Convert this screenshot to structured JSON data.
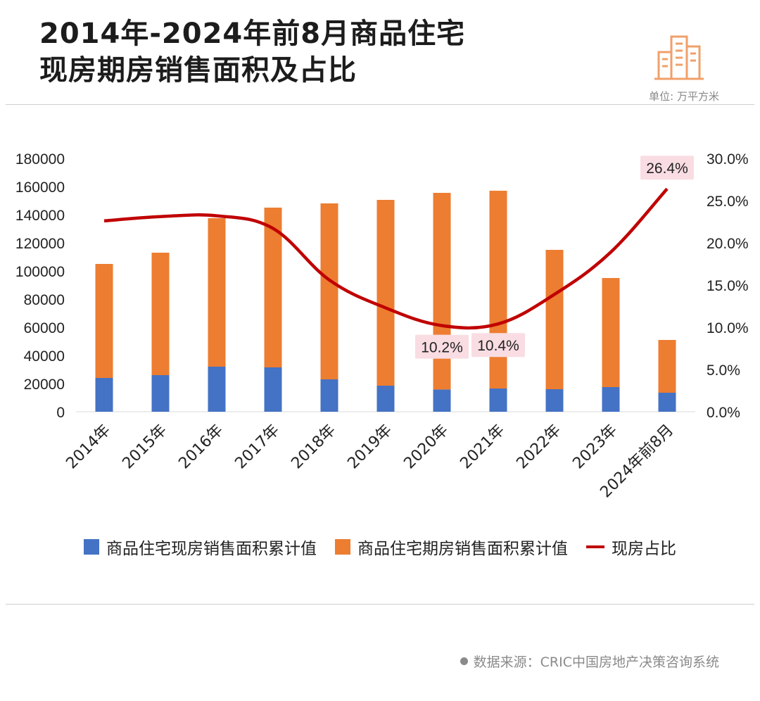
{
  "header": {
    "title_line1": "2014年-2024年前8月商品住宅",
    "title_line2": "现房期房销售面积及占比",
    "unit": "单位: 万平方米",
    "logo_icon": "buildings-icon"
  },
  "chart_data": {
    "type": "bar+line",
    "categories": [
      "2014年",
      "2015年",
      "2016年",
      "2017年",
      "2018年",
      "2019年",
      "2020年",
      "2021年",
      "2022年",
      "2023年",
      "2024年前8月"
    ],
    "series": [
      {
        "name": "商品住宅现房销售面积累计值",
        "type": "stacked-bar",
        "axis": "left",
        "color": "#4472C4",
        "values": [
          24000,
          26000,
          32000,
          31500,
          23000,
          18500,
          15800,
          16500,
          16000,
          17500,
          13500
        ]
      },
      {
        "name": "商品住宅期房销售面积累计值",
        "type": "stacked-bar",
        "axis": "left",
        "color": "#ED7D31",
        "values": [
          81000,
          87000,
          105500,
          113500,
          125000,
          132000,
          139700,
          140500,
          99000,
          77500,
          37500
        ]
      },
      {
        "name": "现房占比",
        "type": "line",
        "axis": "right",
        "color": "#C00000",
        "values": [
          22.6,
          23.1,
          23.2,
          21.7,
          15.6,
          12.3,
          10.2,
          10.4,
          13.9,
          18.9,
          26.4
        ]
      }
    ],
    "y_left": {
      "min": 0,
      "max": 180000,
      "step": 20000,
      "ticks": [
        "0",
        "20000",
        "40000",
        "60000",
        "80000",
        "100000",
        "120000",
        "140000",
        "160000",
        "180000"
      ]
    },
    "y_right": {
      "min": 0,
      "max": 30,
      "step": 5,
      "ticks": [
        "0.0%",
        "5.0%",
        "10.0%",
        "15.0%",
        "20.0%",
        "25.0%",
        "30.0%"
      ]
    },
    "annotations": [
      {
        "index": 6,
        "text": "10.2%"
      },
      {
        "index": 7,
        "text": "10.4%"
      },
      {
        "index": 10,
        "text": "26.4%"
      }
    ],
    "legend_position": "bottom",
    "grid": false
  },
  "legend": {
    "items": [
      {
        "label": "商品住宅现房销售面积累计值",
        "color": "#4472C4"
      },
      {
        "label": "商品住宅期房销售面积累计值",
        "color": "#ED7D31"
      },
      {
        "label": "现房占比",
        "color": "#C00000"
      }
    ]
  },
  "footer": {
    "source": "数据来源：CRIC中国房地产决策咨询系统"
  }
}
